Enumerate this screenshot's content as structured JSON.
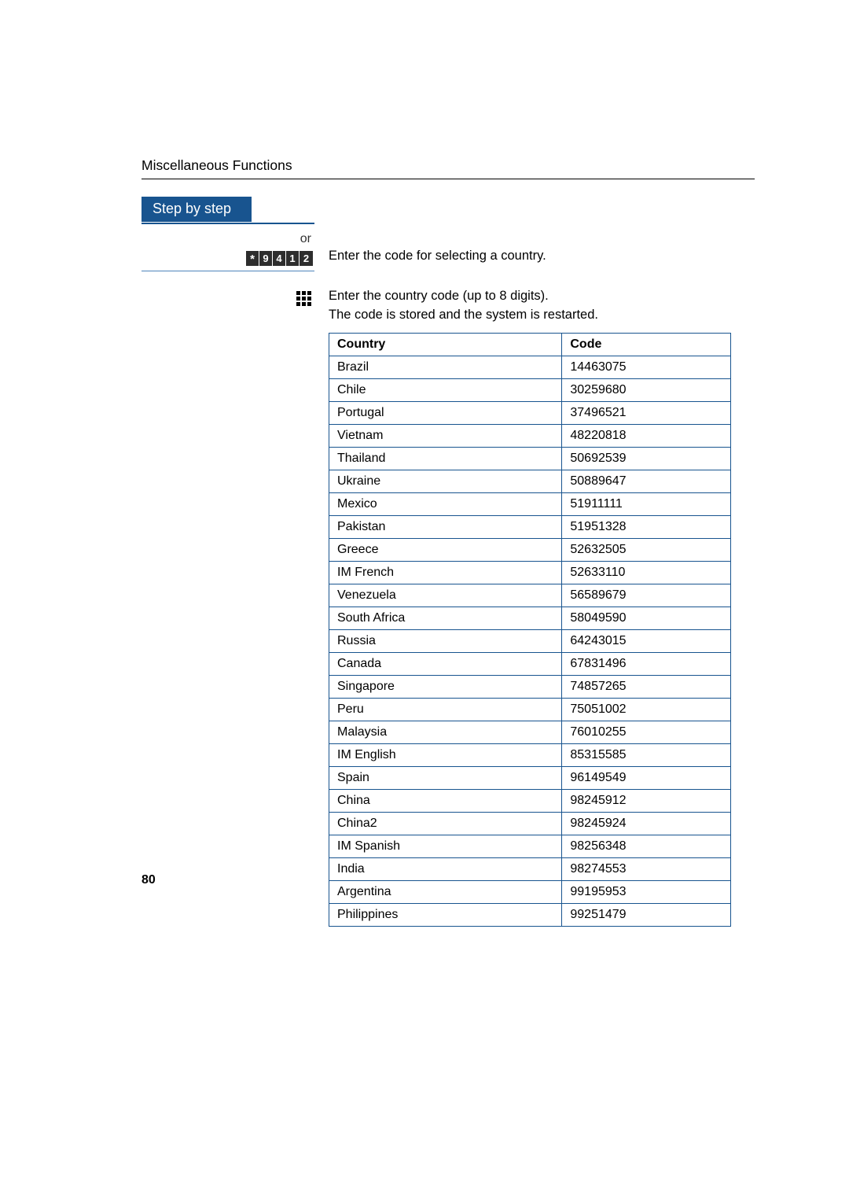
{
  "header": {
    "title": "Miscellaneous Functions"
  },
  "sidebar": {
    "step_label": "Step by step",
    "or_label": "or",
    "code_digits": [
      "*",
      "9",
      "4",
      "1",
      "2"
    ]
  },
  "instructions": {
    "line1": "Enter the code for selecting a country.",
    "line2a": "Enter the country code (up to 8 digits).",
    "line2b": "The code is stored and the system is restarted."
  },
  "table": {
    "headers": {
      "country": "Country",
      "code": "Code"
    },
    "rows": [
      {
        "country": "Brazil",
        "code": "14463075"
      },
      {
        "country": "Chile",
        "code": "30259680"
      },
      {
        "country": "Portugal",
        "code": "37496521"
      },
      {
        "country": "Vietnam",
        "code": "48220818"
      },
      {
        "country": "Thailand",
        "code": "50692539"
      },
      {
        "country": "Ukraine",
        "code": "50889647"
      },
      {
        "country": "Mexico",
        "code": "51911111"
      },
      {
        "country": "Pakistan",
        "code": "51951328"
      },
      {
        "country": "Greece",
        "code": "52632505"
      },
      {
        "country": "IM French",
        "code": "52633110"
      },
      {
        "country": "Venezuela",
        "code": "56589679"
      },
      {
        "country": "South Africa",
        "code": "58049590"
      },
      {
        "country": "Russia",
        "code": "64243015"
      },
      {
        "country": "Canada",
        "code": "67831496"
      },
      {
        "country": "Singapore",
        "code": "74857265"
      },
      {
        "country": "Peru",
        "code": "75051002"
      },
      {
        "country": "Malaysia",
        "code": "76010255"
      },
      {
        "country": "IM English",
        "code": "85315585"
      },
      {
        "country": "Spain",
        "code": "96149549"
      },
      {
        "country": "China",
        "code": "98245912"
      },
      {
        "country": "China2",
        "code": "98245924"
      },
      {
        "country": "IM Spanish",
        "code": "98256348"
      },
      {
        "country": "India",
        "code": "98274553"
      },
      {
        "country": "Argentina",
        "code": "99195953"
      },
      {
        "country": "Philippines",
        "code": "99251479"
      }
    ]
  },
  "page_number": "80",
  "colors": {
    "accent": "#18548f",
    "table_border": "#18548f",
    "code_box_bg": "#2d2d2d",
    "text": "#000000",
    "bg": "#ffffff",
    "left_divider": "#4d84bb"
  }
}
